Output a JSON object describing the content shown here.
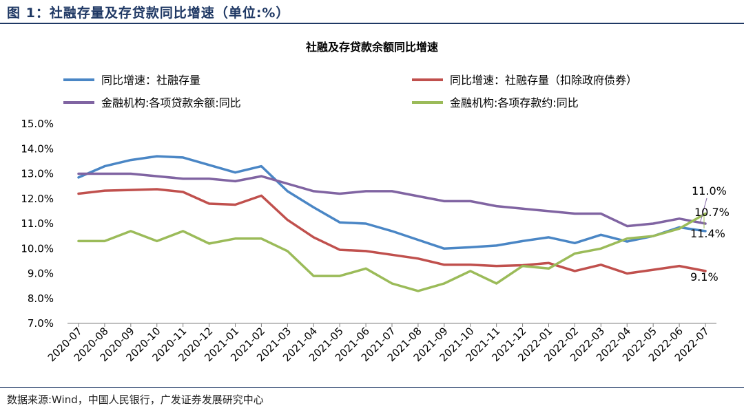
{
  "figure": {
    "title": "图 1：社融存量及存贷款同比增速（单位:%）",
    "source": "数据来源:Wind，中国人民银行，广发证券发展研究中心"
  },
  "chart_data": {
    "type": "line",
    "title": "社融及存贷款余额同比增速",
    "xlabel": "",
    "ylabel": "",
    "ylim": [
      7.0,
      15.0
    ],
    "y_ticks": [
      "7.0%",
      "8.0%",
      "9.0%",
      "10.0%",
      "11.0%",
      "12.0%",
      "13.0%",
      "14.0%",
      "15.0%"
    ],
    "legend_position": "top",
    "grid": false,
    "categories": [
      "2020-07",
      "2020-08",
      "2020-09",
      "2020-10",
      "2020-11",
      "2020-12",
      "2021-01",
      "2021-02",
      "2021-03",
      "2021-04",
      "2021-05",
      "2021-06",
      "2021-07",
      "2021-08",
      "2021-09",
      "2021-10",
      "2021-11",
      "2021-12",
      "2022-01",
      "2022-02",
      "2022-03",
      "2022-04",
      "2022-05",
      "2022-06",
      "2022-07"
    ],
    "series": [
      {
        "name": "同比增速：社融存量",
        "color": "#4a86c5",
        "values": [
          12.85,
          13.3,
          13.55,
          13.7,
          13.65,
          13.35,
          13.05,
          13.3,
          12.3,
          11.65,
          11.05,
          11.0,
          10.7,
          10.35,
          10.0,
          10.05,
          10.12,
          10.3,
          10.45,
          10.22,
          10.55,
          10.28,
          10.5,
          10.85,
          10.7
        ]
      },
      {
        "name": "同比增速：社融存量（扣除政府债券）",
        "color": "#c0504d",
        "values": [
          12.2,
          12.32,
          12.35,
          12.38,
          12.27,
          11.8,
          11.76,
          12.12,
          11.15,
          10.45,
          9.95,
          9.9,
          9.75,
          9.6,
          9.35,
          9.35,
          9.3,
          9.33,
          9.42,
          9.1,
          9.35,
          9.0,
          9.15,
          9.3,
          9.1
        ]
      },
      {
        "name": "金融机构:各项贷款余额:同比",
        "color": "#8064a2",
        "values": [
          13.0,
          13.0,
          13.0,
          12.9,
          12.8,
          12.8,
          12.7,
          12.9,
          12.6,
          12.3,
          12.2,
          12.3,
          12.3,
          12.1,
          11.9,
          11.9,
          11.7,
          11.6,
          11.5,
          11.4,
          11.4,
          10.9,
          11.0,
          11.2,
          11.0
        ]
      },
      {
        "name": "金融机构:各项存款约:同比",
        "color": "#9bbb59",
        "values": [
          10.3,
          10.3,
          10.7,
          10.3,
          10.7,
          10.2,
          10.4,
          10.4,
          9.9,
          8.9,
          8.9,
          9.2,
          8.6,
          8.3,
          8.6,
          9.1,
          8.6,
          9.3,
          9.2,
          9.8,
          10.0,
          10.4,
          10.5,
          10.8,
          11.4
        ]
      }
    ],
    "annotations": [
      "11.0%",
      "10.7%",
      "11.4%",
      "9.1%"
    ]
  }
}
